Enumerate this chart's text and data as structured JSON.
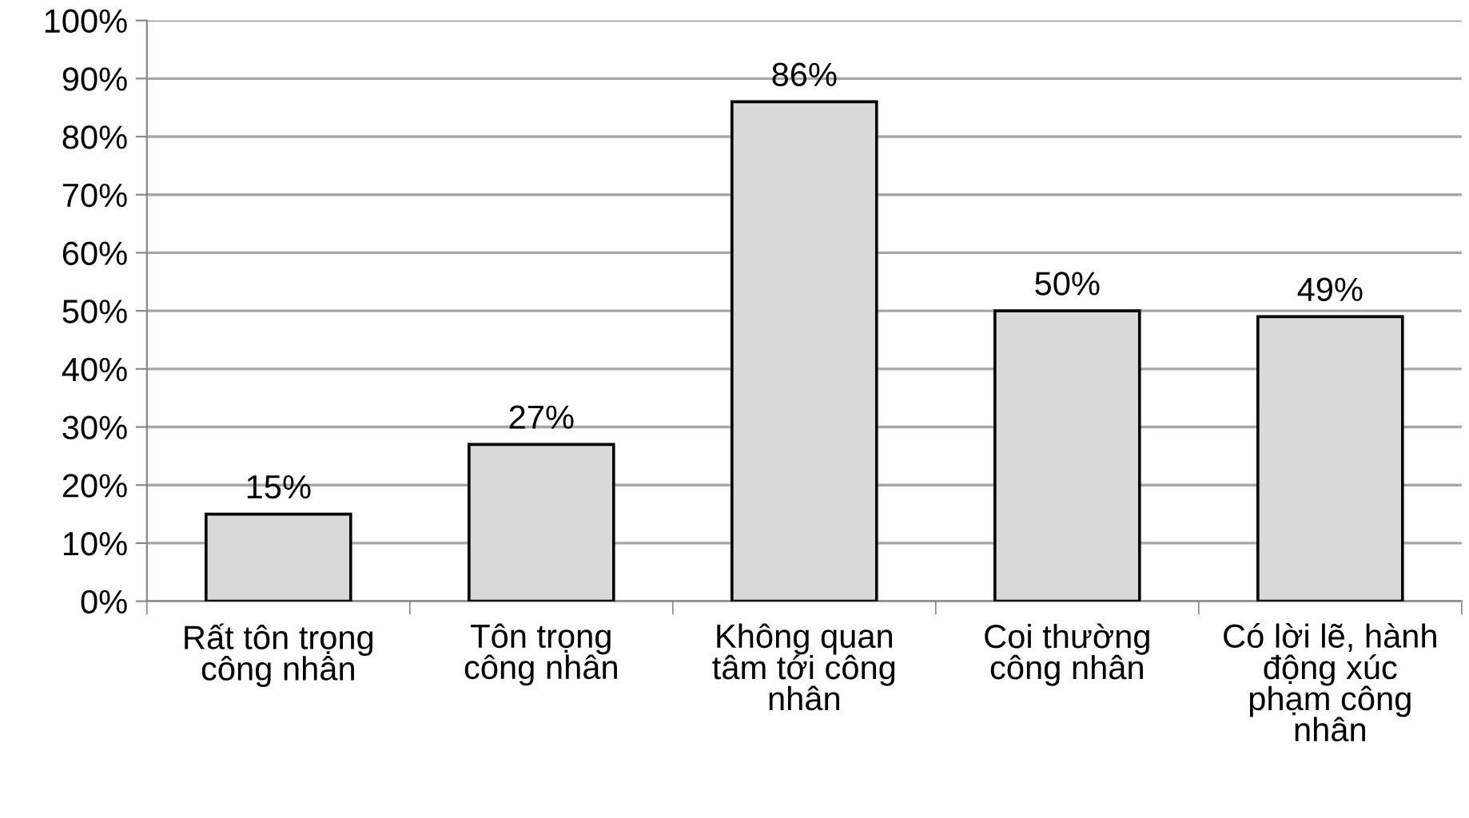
{
  "chart_data": {
    "type": "bar",
    "categories": [
      "Rất tôn trọng\ncông nhân",
      "Tôn trọng\ncông nhân",
      "Không quan\ntâm tới công\nnhân",
      "Coi thường\ncông nhân",
      "Có lời lẽ, hành\nđộng xúc\nphạm công\nnhân"
    ],
    "values": [
      15,
      27,
      86,
      50,
      49
    ],
    "value_labels": [
      "15%",
      "27%",
      "86%",
      "50%",
      "49%"
    ],
    "color": "#d9d9d9",
    "ylim": [
      0,
      100
    ],
    "yticks": [
      {
        "value": 0,
        "label": "0%"
      },
      {
        "value": 10,
        "label": "10%"
      },
      {
        "value": 20,
        "label": "20%"
      },
      {
        "value": 30,
        "label": "30%"
      },
      {
        "value": 40,
        "label": "40%"
      },
      {
        "value": 50,
        "label": "50%"
      },
      {
        "value": 60,
        "label": "60%"
      },
      {
        "value": 70,
        "label": "70%"
      },
      {
        "value": 80,
        "label": "80%"
      },
      {
        "value": 90,
        "label": "90%"
      },
      {
        "value": 100,
        "label": "100%"
      }
    ],
    "grid": "y",
    "legend": false
  }
}
